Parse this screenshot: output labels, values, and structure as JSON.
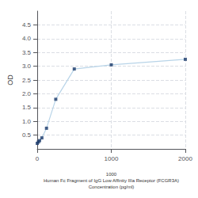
{
  "chart_data": {
    "type": "line",
    "x": [
      0,
      15.625,
      31.25,
      62.5,
      125,
      250,
      500,
      1000,
      2000
    ],
    "series": [
      {
        "type": "line",
        "color": "#b8d4e8",
        "values": [
          0.2,
          0.25,
          0.3,
          0.4,
          0.75,
          1.8,
          2.9,
          3.05,
          3.25
        ]
      },
      {
        "type": "scatter",
        "color": "#1a3a6a",
        "marker": "square",
        "values": [
          0.2,
          0.25,
          0.3,
          0.4,
          0.75,
          1.8,
          2.9,
          3.05,
          3.25
        ]
      }
    ],
    "xlabel": "1000\nHuman Fc Fragment of IgG Low Affinity IIIa Receptor (FCGR3A)\nConcentration (pg/ml)",
    "ylabel": "OD",
    "xlim": [
      0,
      2000
    ],
    "xticks": [
      0,
      1000,
      2000
    ],
    "ylim": [
      0,
      5
    ],
    "yticks": [
      0.5,
      {
        "value": 1.0,
        "label": "1.0"
      },
      1.5,
      {
        "value": 2.0,
        "label": "2.0"
      },
      2.5,
      {
        "value": 3.0,
        "label": "3.0"
      },
      3.5,
      {
        "value": 4.0,
        "label": "4.0"
      },
      4.5
    ],
    "grid": true
  }
}
